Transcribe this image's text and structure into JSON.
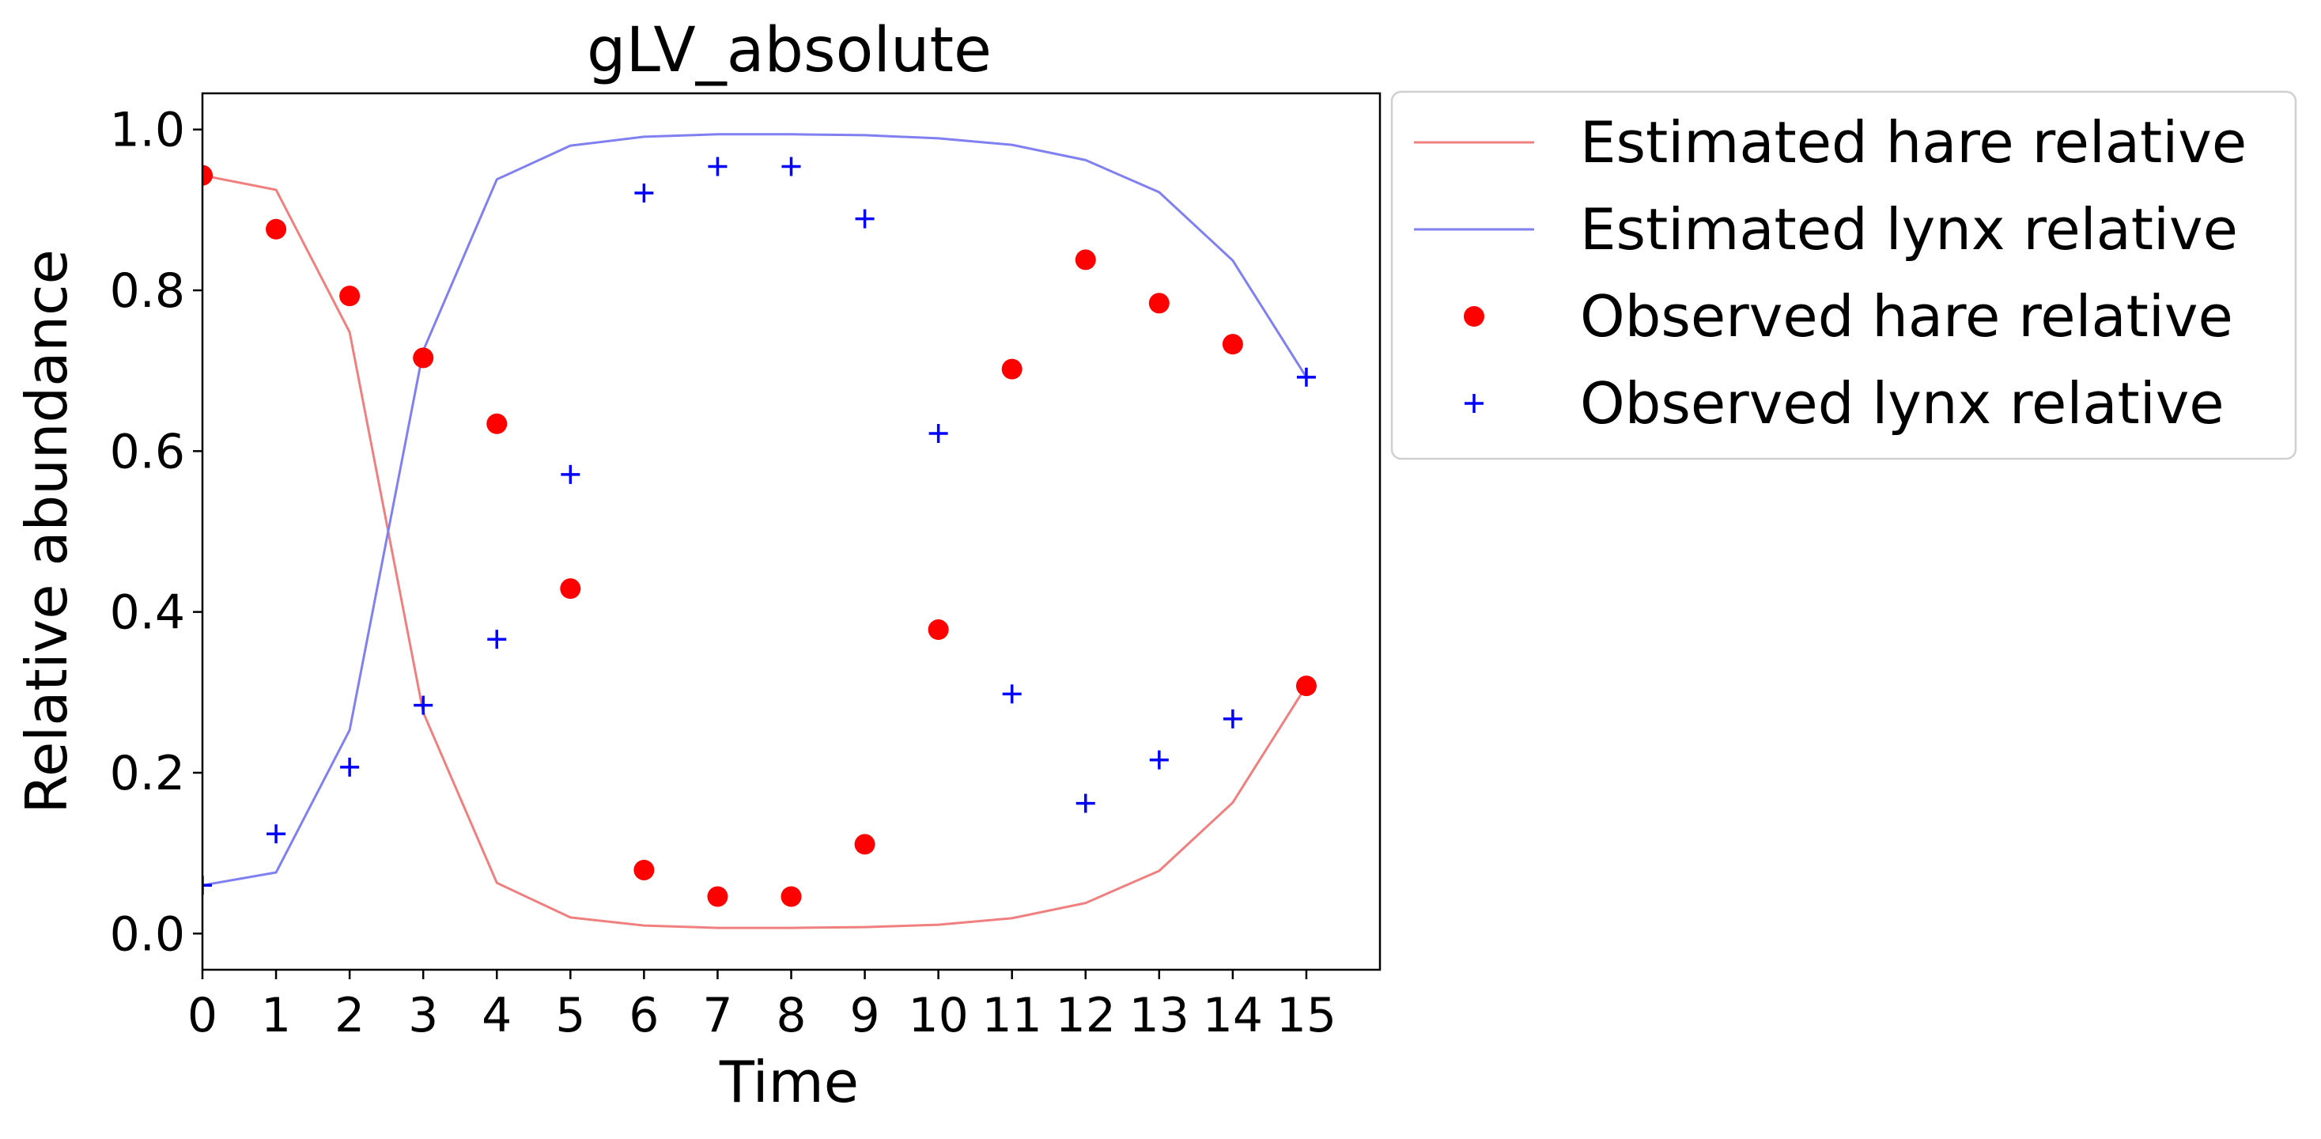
{
  "chart_data": {
    "type": "line",
    "title": "gLV_absolute",
    "xlabel": "Time",
    "ylabel": "Relative abundance",
    "x": [
      0,
      1,
      2,
      3,
      4,
      5,
      6,
      7,
      8,
      9,
      10,
      11,
      12,
      13,
      14,
      15
    ],
    "xlim": [
      0,
      16
    ],
    "ylim": [
      -0.045,
      1.045
    ],
    "xticks": [
      "0",
      "1",
      "2",
      "3",
      "4",
      "5",
      "6",
      "7",
      "8",
      "9",
      "10",
      "11",
      "12",
      "13",
      "14",
      "15"
    ],
    "yticks": [
      "0.0",
      "0.2",
      "0.4",
      "0.6",
      "0.8",
      "1.0"
    ],
    "grid": false,
    "legend_placement": "outside upper right",
    "series": [
      {
        "name": "Estimated hare relative",
        "kind": "line",
        "color": "#f08080",
        "values": [
          0.943,
          0.925,
          0.748,
          0.275,
          0.063,
          0.02,
          0.01,
          0.007,
          0.007,
          0.008,
          0.011,
          0.019,
          0.038,
          0.078,
          0.163,
          0.308
        ]
      },
      {
        "name": "Estimated lynx relative",
        "kind": "line",
        "color": "#8080f0",
        "values": [
          0.06,
          0.076,
          0.253,
          0.725,
          0.938,
          0.98,
          0.991,
          0.994,
          0.994,
          0.993,
          0.989,
          0.981,
          0.962,
          0.922,
          0.837,
          0.692
        ]
      },
      {
        "name": "Observed hare relative",
        "kind": "marker-circle",
        "color": "#ff0000",
        "values": [
          0.943,
          0.876,
          0.793,
          0.716,
          0.634,
          0.429,
          0.079,
          0.046,
          0.046,
          0.111,
          0.378,
          0.702,
          0.838,
          0.784,
          0.733,
          0.308
        ]
      },
      {
        "name": "Observed lynx relative",
        "kind": "marker-plus",
        "color": "#0000ff",
        "values": [
          0.06,
          0.124,
          0.207,
          0.284,
          0.366,
          0.571,
          0.921,
          0.954,
          0.954,
          0.889,
          0.622,
          0.298,
          0.162,
          0.216,
          0.267,
          0.692
        ]
      }
    ]
  }
}
